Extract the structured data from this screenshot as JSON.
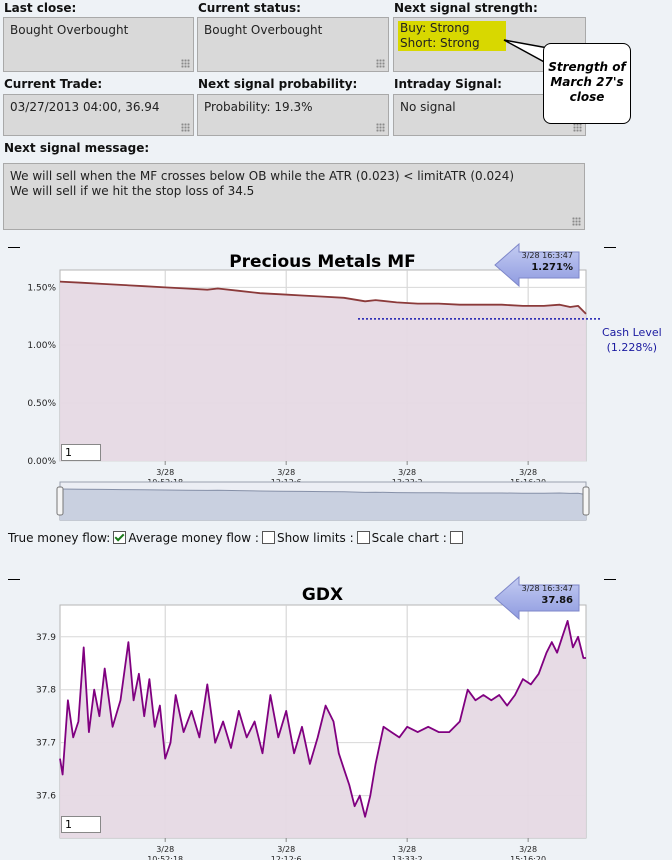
{
  "fields": {
    "last_close": {
      "label": "Last close:",
      "value": "Bought Overbought"
    },
    "current_status": {
      "label": "Current status:",
      "value": "Bought Overbought"
    },
    "next_signal_strength": {
      "label": "Next signal strength:",
      "buy": "Buy: Strong",
      "short": "Short: Strong"
    },
    "current_trade": {
      "label": "Current Trade:",
      "value": "03/27/2013 04:00, 36.94"
    },
    "next_signal_probability": {
      "label": "Next signal probability:",
      "value": "Probability: 19.3%"
    },
    "intraday_signal": {
      "label": "Intraday Signal:",
      "value": "No signal"
    },
    "next_signal_message": {
      "label": "Next signal message:",
      "line1": "We will sell when the MF crosses below OB while the ATR (0.023) < limitATR (0.024)",
      "line2": "We will sell if we hit the stop loss of 34.5"
    }
  },
  "callout": {
    "line1": "Strength of",
    "line2": "March 27's",
    "line3": "close"
  },
  "options": {
    "true_money_flow": "True money flow:",
    "average_money_flow": "Average money flow :",
    "show_limits": "Show limits :",
    "scale_chart": "Scale chart :",
    "true_money_flow_checked": true
  },
  "colors": {
    "mf_line": "#8b3a3a",
    "gdx_line": "#800080",
    "fill": "#e6d9e4",
    "cash_line": "#1a1ab0"
  },
  "chart_data": [
    {
      "type": "line",
      "title": "Precious Metals MF",
      "badge": {
        "time": "3/28 16:3:47",
        "value": "1.271%"
      },
      "zoom_value": "1",
      "x_ticks": [
        {
          "date": "3/28",
          "time": "10:52:18",
          "t": 0.2
        },
        {
          "date": "3/28",
          "time": "12:12:6",
          "t": 0.43
        },
        {
          "date": "3/28",
          "time": "13:33:2",
          "t": 0.66
        },
        {
          "date": "3/28",
          "time": "15:16:20",
          "t": 0.89
        }
      ],
      "y_ticks": [
        "0.00%",
        "0.50%",
        "1.00%",
        "1.50%"
      ],
      "ylim": [
        0,
        1.65
      ],
      "cash_level": {
        "label": "Cash Level",
        "value_label": "(1.228%)",
        "value": 1.228
      },
      "x": [
        0,
        0.04,
        0.08,
        0.12,
        0.16,
        0.2,
        0.24,
        0.28,
        0.3,
        0.34,
        0.38,
        0.42,
        0.46,
        0.5,
        0.54,
        0.58,
        0.6,
        0.64,
        0.68,
        0.72,
        0.76,
        0.8,
        0.84,
        0.88,
        0.92,
        0.95,
        0.97,
        0.985,
        1.0
      ],
      "values": [
        1.55,
        1.54,
        1.53,
        1.52,
        1.51,
        1.5,
        1.49,
        1.48,
        1.49,
        1.47,
        1.45,
        1.44,
        1.43,
        1.42,
        1.41,
        1.38,
        1.39,
        1.37,
        1.36,
        1.36,
        1.35,
        1.35,
        1.35,
        1.34,
        1.34,
        1.35,
        1.33,
        1.34,
        1.271
      ]
    },
    {
      "type": "line",
      "title": "GDX",
      "badge": {
        "time": "3/28 16:3:47",
        "value": "37.86"
      },
      "zoom_value": "1",
      "x_ticks": [
        {
          "date": "3/28",
          "time": "10:52:18",
          "t": 0.2
        },
        {
          "date": "3/28",
          "time": "12:12:6",
          "t": 0.43
        },
        {
          "date": "3/28",
          "time": "13:33:2",
          "t": 0.66
        },
        {
          "date": "3/28",
          "time": "15:16:20",
          "t": 0.89
        }
      ],
      "y_ticks": [
        "37.6",
        "37.7",
        "37.8",
        "37.9"
      ],
      "ylim": [
        37.52,
        37.96
      ],
      "x": [
        0,
        0.005,
        0.015,
        0.025,
        0.035,
        0.045,
        0.055,
        0.065,
        0.075,
        0.085,
        0.1,
        0.115,
        0.13,
        0.14,
        0.15,
        0.16,
        0.17,
        0.18,
        0.19,
        0.2,
        0.21,
        0.22,
        0.235,
        0.25,
        0.265,
        0.28,
        0.295,
        0.31,
        0.325,
        0.34,
        0.355,
        0.37,
        0.385,
        0.4,
        0.415,
        0.43,
        0.445,
        0.46,
        0.475,
        0.49,
        0.505,
        0.52,
        0.53,
        0.54,
        0.55,
        0.56,
        0.57,
        0.58,
        0.59,
        0.6,
        0.615,
        0.63,
        0.645,
        0.66,
        0.68,
        0.7,
        0.72,
        0.74,
        0.76,
        0.775,
        0.79,
        0.805,
        0.82,
        0.835,
        0.85,
        0.865,
        0.88,
        0.895,
        0.91,
        0.925,
        0.935,
        0.945,
        0.955,
        0.965,
        0.975,
        0.985,
        0.995,
        1.0
      ],
      "values": [
        37.67,
        37.64,
        37.78,
        37.71,
        37.74,
        37.88,
        37.72,
        37.8,
        37.75,
        37.84,
        37.73,
        37.78,
        37.89,
        37.78,
        37.83,
        37.75,
        37.82,
        37.73,
        37.77,
        37.67,
        37.7,
        37.79,
        37.72,
        37.76,
        37.71,
        37.81,
        37.7,
        37.74,
        37.69,
        37.76,
        37.71,
        37.74,
        37.68,
        37.79,
        37.71,
        37.76,
        37.68,
        37.73,
        37.66,
        37.71,
        37.77,
        37.74,
        37.68,
        37.65,
        37.62,
        37.58,
        37.6,
        37.56,
        37.6,
        37.66,
        37.73,
        37.72,
        37.71,
        37.73,
        37.72,
        37.73,
        37.72,
        37.72,
        37.74,
        37.8,
        37.78,
        37.79,
        37.78,
        37.79,
        37.77,
        37.79,
        37.82,
        37.81,
        37.83,
        37.87,
        37.89,
        37.87,
        37.9,
        37.93,
        37.88,
        37.9,
        37.86,
        37.86
      ]
    }
  ]
}
